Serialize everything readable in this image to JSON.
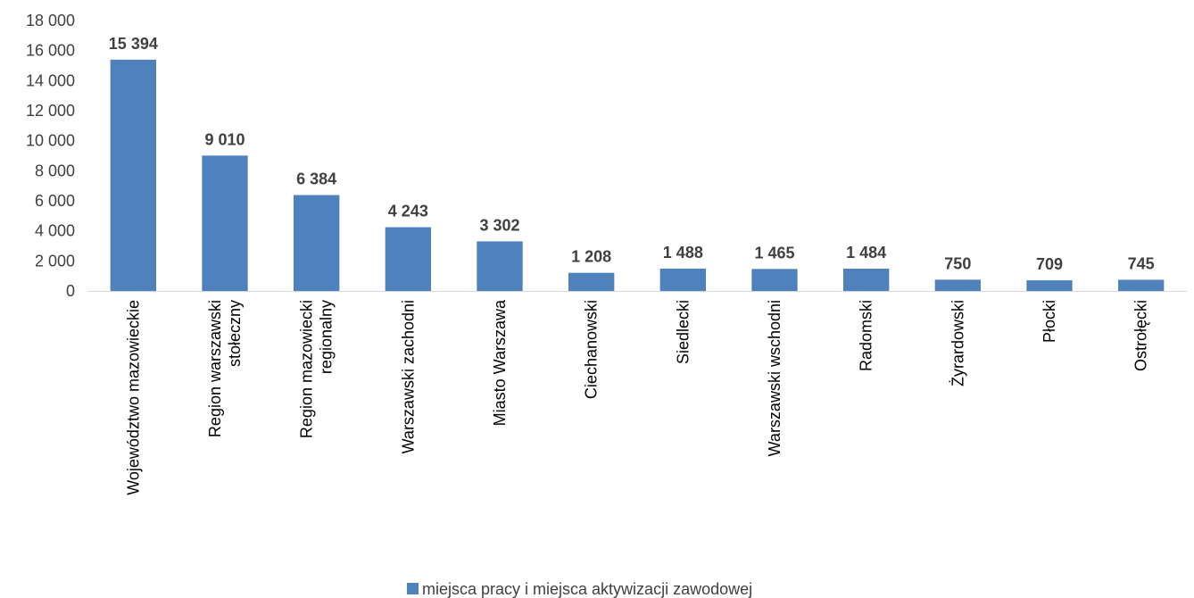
{
  "chart_data": {
    "type": "bar",
    "categories": [
      "Województwo mazowieckie",
      "Region warszawski stołeczny",
      "Region mazowiecki regionalny",
      "Warszawski zachodni",
      "Miasto Warszawa",
      "Ciechanowski",
      "Siedlecki",
      "Warszawski wschodni",
      "Radomski",
      "Żyrardowski",
      "Płocki",
      "Ostrołęcki"
    ],
    "series": [
      {
        "name": "miejsca pracy i miejsca aktywizacji zawodowej",
        "values": [
          15394,
          9010,
          6384,
          4243,
          3302,
          1208,
          1488,
          1465,
          1484,
          750,
          709,
          745
        ],
        "color": "#4f81bd"
      }
    ],
    "data_labels": [
      "15 394",
      "9 010",
      "6 384",
      "4 243",
      "3 302",
      "1 208",
      "1 488",
      "1 465",
      "1 484",
      "750",
      "709",
      "745"
    ],
    "y_ticks": [
      0,
      2000,
      4000,
      6000,
      8000,
      10000,
      12000,
      14000,
      16000,
      18000
    ],
    "y_tick_labels": [
      "0",
      "2 000",
      "4 000",
      "6 000",
      "8 000",
      "10 000",
      "12 000",
      "14 000",
      "16 000",
      "18 000"
    ],
    "ylim": [
      0,
      18000
    ],
    "grid": false,
    "legend_position": "bottom",
    "title": "",
    "xlabel": "",
    "ylabel": ""
  }
}
